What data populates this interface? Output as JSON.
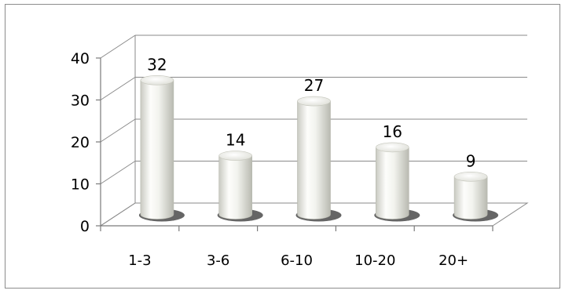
{
  "chart_data": {
    "type": "bar",
    "style": "3d-cylinder",
    "categories": [
      "1-3",
      "3-6",
      "6-10",
      "10-20",
      "20+"
    ],
    "values": [
      32,
      14,
      27,
      16,
      9
    ],
    "ylim": [
      0,
      40
    ],
    "yticks": [
      "0",
      "10",
      "20",
      "30",
      "40"
    ],
    "data_labels": [
      "32",
      "14",
      "27",
      "16",
      "9"
    ],
    "grid": true,
    "legend": "none",
    "bar_color": "#e9eae4",
    "shadow_color": "#4a4a4a"
  }
}
